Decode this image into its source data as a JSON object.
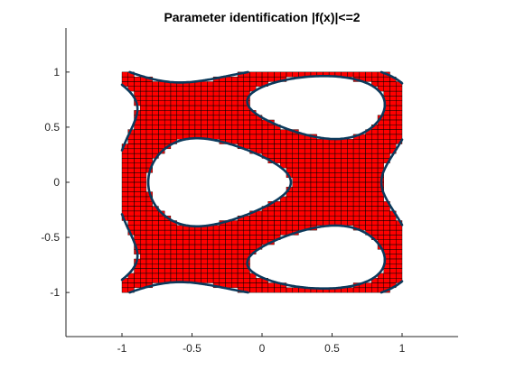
{
  "chart_data": {
    "type": "region",
    "title": "Parameter identification |f(x)|<=2",
    "xlabel": "",
    "ylabel": "",
    "xlim": [
      -1.4,
      1.4
    ],
    "ylim": [
      -1.4,
      1.4
    ],
    "xticks": [
      -1,
      -0.5,
      0,
      0.5,
      1
    ],
    "xtick_labels": [
      "-1",
      "-0.5",
      "0",
      "0.5",
      "1"
    ],
    "yticks": [
      -1,
      -0.5,
      0,
      0.5,
      1
    ],
    "ytick_labels": [
      "-1",
      "-0.5",
      "0",
      "0.5",
      "1"
    ],
    "domain": {
      "x": [
        -1,
        1
      ],
      "y": [
        -1,
        1
      ]
    },
    "threshold": 2,
    "grid": false,
    "region_fill_color": "#ff0000",
    "box_edge_color": "#000000",
    "boundary_color": "#0b3a5c"
  }
}
